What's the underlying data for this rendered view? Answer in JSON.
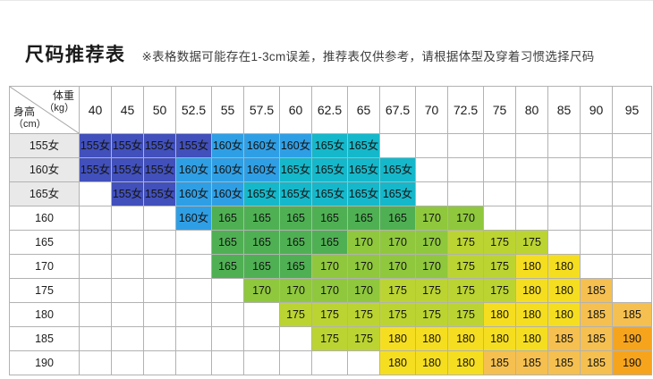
{
  "title": "尺码推荐表",
  "note": "※表格数据可能存在1-3cm误差，推荐表仅供参考，请根据体型及穿着习惯选择尺码",
  "table": {
    "corner": {
      "weight_label": "体重",
      "weight_unit": "（kg）",
      "height_label": "身高",
      "height_unit": "（cm）"
    },
    "weight_columns": [
      "40",
      "45",
      "50",
      "52.5",
      "55",
      "57.5",
      "60",
      "62.5",
      "65",
      "67.5",
      "70",
      "72.5",
      "75",
      "80",
      "85",
      "90",
      "95"
    ],
    "rows": [
      {
        "height": "155女",
        "shaded": true,
        "cells": [
          "155女",
          "155女",
          "155女",
          "155女",
          "160女",
          "160女",
          "160女",
          "165女",
          "165女",
          "",
          "",
          "",
          "",
          "",
          "",
          "",
          ""
        ]
      },
      {
        "height": "160女",
        "shaded": true,
        "cells": [
          "155女",
          "155女",
          "155女",
          "160女",
          "160女",
          "160女",
          "165女",
          "165女",
          "165女",
          "165女",
          "",
          "",
          "",
          "",
          "",
          "",
          ""
        ]
      },
      {
        "height": "165女",
        "shaded": true,
        "cells": [
          "",
          "155女",
          "155女",
          "160女",
          "160女",
          "165女",
          "165女",
          "165女",
          "165女",
          "165女",
          "",
          "",
          "",
          "",
          "",
          "",
          ""
        ]
      },
      {
        "height": "160",
        "shaded": false,
        "cells": [
          "",
          "",
          "",
          "160女",
          "165",
          "165",
          "165",
          "165",
          "165",
          "165",
          "170",
          "170",
          "",
          "",
          "",
          "",
          ""
        ]
      },
      {
        "height": "165",
        "shaded": false,
        "cells": [
          "",
          "",
          "",
          "",
          "165",
          "165",
          "165",
          "165",
          "170",
          "170",
          "170",
          "175",
          "175",
          "175",
          "",
          "",
          ""
        ]
      },
      {
        "height": "170",
        "shaded": false,
        "cells": [
          "",
          "",
          "",
          "",
          "165",
          "165",
          "165",
          "170",
          "170",
          "170",
          "170",
          "175",
          "175",
          "180",
          "180",
          "",
          ""
        ]
      },
      {
        "height": "175",
        "shaded": false,
        "cells": [
          "",
          "",
          "",
          "",
          "",
          "170",
          "170",
          "170",
          "170",
          "175",
          "175",
          "175",
          "175",
          "180",
          "180",
          "185",
          ""
        ]
      },
      {
        "height": "180",
        "shaded": false,
        "cells": [
          "",
          "",
          "",
          "",
          "",
          "",
          "175",
          "175",
          "175",
          "175",
          "175",
          "175",
          "180",
          "180",
          "180",
          "185",
          "185"
        ]
      },
      {
        "height": "185",
        "shaded": false,
        "cells": [
          "",
          "",
          "",
          "",
          "",
          "",
          "",
          "175",
          "175",
          "180",
          "180",
          "180",
          "180",
          "180",
          "185",
          "185",
          "190"
        ]
      },
      {
        "height": "190",
        "shaded": false,
        "cells": [
          "",
          "",
          "",
          "",
          "",
          "",
          "",
          "",
          "",
          "180",
          "180",
          "180",
          "185",
          "185",
          "185",
          "185",
          "190"
        ]
      }
    ],
    "size_colors": {
      "155女": "#4150bb",
      "160女": "#2f9fe5",
      "165女": "#15b8ca",
      "165": "#4fb053",
      "170": "#8fc83d",
      "175": "#bcd431",
      "180": "#f5de20",
      "185": "#f5c050",
      "190": "#f7a41d"
    }
  },
  "chart_data": {
    "type": "table",
    "title": "尺码推荐表",
    "note": "※表格数据可能存在1-3cm误差，推荐表仅供参考，请根据体型及穿着习惯选择尺码",
    "x_axis_label": "体重（kg）",
    "y_axis_label": "身高（cm）",
    "columns": [
      "40",
      "45",
      "50",
      "52.5",
      "55",
      "57.5",
      "60",
      "62.5",
      "65",
      "67.5",
      "70",
      "72.5",
      "75",
      "80",
      "85",
      "90",
      "95"
    ],
    "row_labels": [
      "155女",
      "160女",
      "165女",
      "160",
      "165",
      "170",
      "175",
      "180",
      "185",
      "190"
    ],
    "matrix": [
      [
        "155女",
        "155女",
        "155女",
        "155女",
        "160女",
        "160女",
        "160女",
        "165女",
        "165女",
        "",
        "",
        "",
        "",
        "",
        "",
        "",
        ""
      ],
      [
        "155女",
        "155女",
        "155女",
        "160女",
        "160女",
        "160女",
        "165女",
        "165女",
        "165女",
        "165女",
        "",
        "",
        "",
        "",
        "",
        "",
        ""
      ],
      [
        "",
        "155女",
        "155女",
        "160女",
        "160女",
        "165女",
        "165女",
        "165女",
        "165女",
        "165女",
        "",
        "",
        "",
        "",
        "",
        "",
        ""
      ],
      [
        "",
        "",
        "",
        "160女",
        "165",
        "165",
        "165",
        "165",
        "165",
        "165",
        "170",
        "170",
        "",
        "",
        "",
        "",
        ""
      ],
      [
        "",
        "",
        "",
        "",
        "165",
        "165",
        "165",
        "165",
        "170",
        "170",
        "170",
        "175",
        "175",
        "175",
        "",
        "",
        ""
      ],
      [
        "",
        "",
        "",
        "",
        "165",
        "165",
        "165",
        "170",
        "170",
        "170",
        "170",
        "175",
        "175",
        "180",
        "180",
        "",
        ""
      ],
      [
        "",
        "",
        "",
        "",
        "",
        "170",
        "170",
        "170",
        "170",
        "175",
        "175",
        "175",
        "175",
        "180",
        "180",
        "185",
        ""
      ],
      [
        "",
        "",
        "",
        "",
        "",
        "",
        "175",
        "175",
        "175",
        "175",
        "175",
        "175",
        "180",
        "180",
        "180",
        "185",
        "185"
      ],
      [
        "",
        "",
        "",
        "",
        "",
        "",
        "",
        "175",
        "175",
        "180",
        "180",
        "180",
        "180",
        "180",
        "185",
        "185",
        "190"
      ],
      [
        "",
        "",
        "",
        "",
        "",
        "",
        "",
        "",
        "",
        "180",
        "180",
        "180",
        "185",
        "185",
        "185",
        "185",
        "190"
      ]
    ],
    "legend": {
      "155女": "#4150bb",
      "160女": "#2f9fe5",
      "165女": "#15b8ca",
      "165": "#4fb053",
      "170": "#8fc83d",
      "175": "#bcd431",
      "180": "#f5de20",
      "185": "#f5c050",
      "190": "#f7a41d"
    }
  }
}
